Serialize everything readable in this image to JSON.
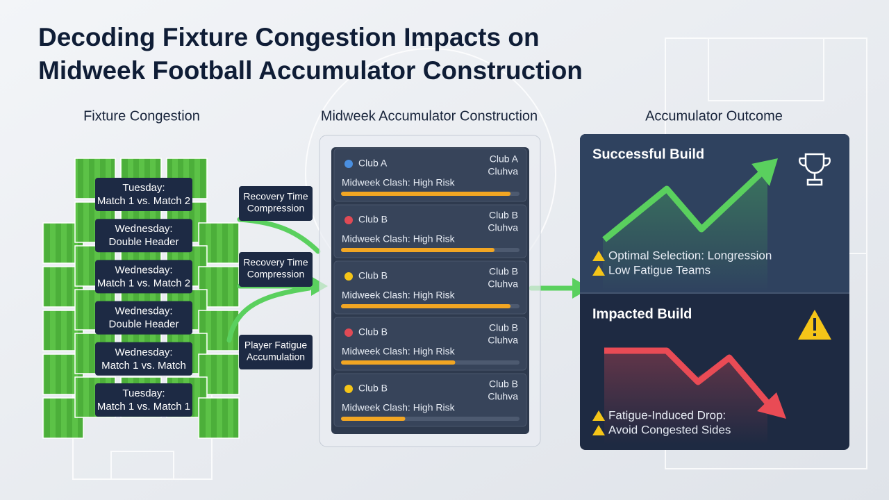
{
  "header": {
    "title_lines": [
      "Decoding Fixture Congestion Impacts on",
      "Midweek Football Accumulator Construction"
    ]
  },
  "columns": [
    "Fixture Congestion",
    "Midweek Accumulator Construction",
    "Accumulator Outcome"
  ],
  "schedule": [
    {
      "day": "Tuesday:",
      "match": "Match 1 vs. Match 2"
    },
    {
      "day": "Wednesday:",
      "match": "Double Header"
    },
    {
      "day": "Wednesday:",
      "match": "Match 1 vs. Match 2"
    },
    {
      "day": "Wednesday:",
      "match": "Double Header"
    },
    {
      "day": "Wednesday:",
      "match": "Match 1 vs. Match"
    },
    {
      "day": "Tuesday:",
      "match": "Match 1 vs. Match 1"
    }
  ],
  "factors": [
    [
      "Recovery Time",
      "Compression"
    ],
    [
      "Recovery Time",
      "Compression"
    ],
    [
      "Player Fatigue",
      "Accumulation"
    ]
  ],
  "fixtures": [
    {
      "team": "Club A",
      "opponent": "Club A",
      "sub": "Cluhva",
      "label": "Midweek Clash: High Risk",
      "risk": 95
    },
    {
      "team": "Club B",
      "opponent": "Club B",
      "sub": "Cluhva",
      "label": "Midweek Clash: High Risk",
      "risk": 86
    },
    {
      "team": "Club B",
      "opponent": "Club B",
      "sub": "Cluhva",
      "label": "Midweek Clash: High Risk",
      "risk": 95
    },
    {
      "team": "Club B",
      "opponent": "Club B",
      "sub": "Cluhva",
      "label": "Midweek Clash: High Risk",
      "risk": 64
    },
    {
      "team": "Club B",
      "opponent": "Club B",
      "sub": "Cluhva",
      "label": "Midweek Clash: High Risk",
      "risk": 36
    }
  ],
  "outcomes": [
    {
      "title": "Successful Build",
      "notes": [
        "Optimal Selection: Longression",
        "Low Fatigue Teams"
      ]
    },
    {
      "title": "Impacted Build",
      "notes": [
        "Fatigue-Induced Drop:",
        "Avoid Congested Sides"
      ]
    }
  ]
}
